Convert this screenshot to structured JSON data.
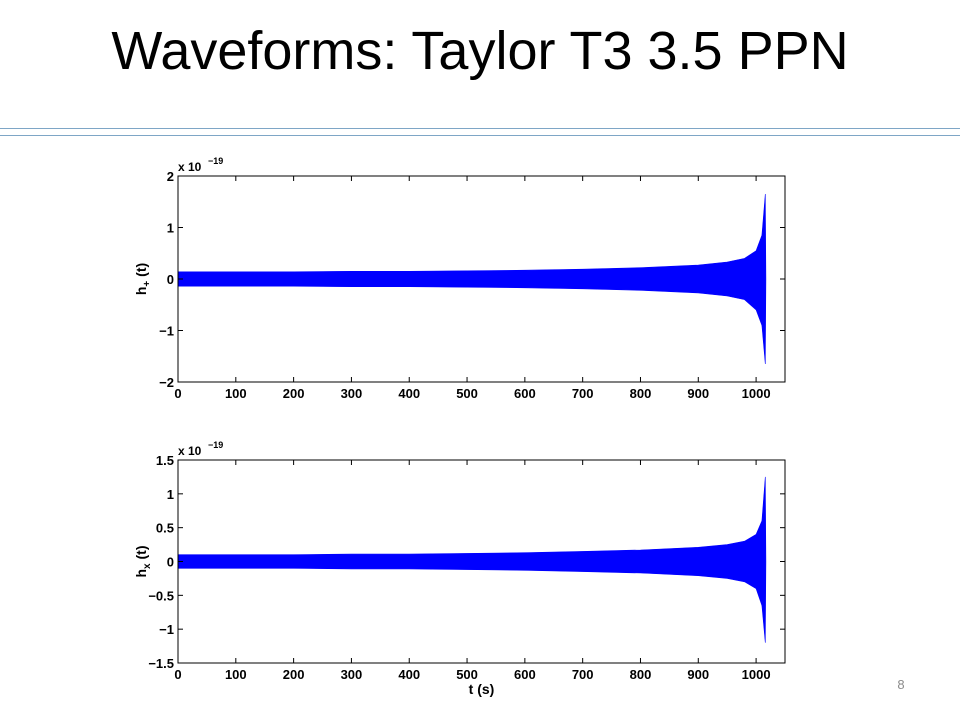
{
  "slide": {
    "title": "Waveforms: Taylor T3 3.5 PPN",
    "page_number": "8",
    "accent_color": "#7ea6c6"
  },
  "chart_data": [
    {
      "type": "line",
      "id": "hplus",
      "ylabel": "h+(t)",
      "ylabel_main": "h",
      "ylabel_sub": "+",
      "ylabel_rest": " (t)",
      "xlabel": "",
      "scale_label": "x 10",
      "scale_exponent": "−19",
      "xlim": [
        0,
        1050
      ],
      "ylim": [
        -2,
        2
      ],
      "xticks": [
        0,
        100,
        200,
        300,
        400,
        500,
        600,
        700,
        800,
        900,
        1000
      ],
      "xtick_labels": [
        "0",
        "100",
        "200",
        "300",
        "400",
        "500",
        "600",
        "700",
        "800",
        "900",
        "1000"
      ],
      "yticks": [
        -2,
        -1,
        0,
        1,
        2
      ],
      "ytick_labels": [
        "−2",
        "−1",
        "0",
        "1",
        "2"
      ],
      "color": "#0000ff",
      "envelope": {
        "t": [
          0,
          100,
          200,
          300,
          400,
          500,
          600,
          700,
          800,
          900,
          950,
          980,
          1000,
          1010,
          1016,
          1017
        ],
        "upper": [
          0.14,
          0.14,
          0.14,
          0.15,
          0.15,
          0.16,
          0.17,
          0.19,
          0.22,
          0.27,
          0.33,
          0.4,
          0.55,
          0.85,
          1.65,
          0
        ],
        "lower": [
          -0.14,
          -0.14,
          -0.14,
          -0.15,
          -0.15,
          -0.16,
          -0.17,
          -0.19,
          -0.22,
          -0.27,
          -0.33,
          -0.4,
          -0.6,
          -0.9,
          -1.65,
          0
        ]
      }
    },
    {
      "type": "line",
      "id": "hcross",
      "ylabel": "hx(t)",
      "ylabel_main": "h",
      "ylabel_sub": "x",
      "ylabel_rest": " (t)",
      "xlabel": "t (s)",
      "scale_label": "x 10",
      "scale_exponent": "−19",
      "xlim": [
        0,
        1050
      ],
      "ylim": [
        -1.5,
        1.5
      ],
      "xticks": [
        0,
        100,
        200,
        300,
        400,
        500,
        600,
        700,
        800,
        900,
        1000
      ],
      "xtick_labels": [
        "0",
        "100",
        "200",
        "300",
        "400",
        "500",
        "600",
        "700",
        "800",
        "900",
        "1000"
      ],
      "yticks": [
        -1.5,
        -1,
        -0.5,
        0,
        0.5,
        1,
        1.5
      ],
      "ytick_labels": [
        "−1.5",
        "−1",
        "−0.5",
        "0",
        "0.5",
        "1",
        "1.5"
      ],
      "color": "#0000ff",
      "envelope": {
        "t": [
          0,
          100,
          200,
          300,
          400,
          500,
          600,
          700,
          800,
          900,
          950,
          980,
          1000,
          1010,
          1016,
          1017
        ],
        "upper": [
          0.1,
          0.1,
          0.1,
          0.11,
          0.11,
          0.12,
          0.13,
          0.15,
          0.17,
          0.21,
          0.25,
          0.3,
          0.4,
          0.6,
          1.25,
          0
        ],
        "lower": [
          -0.1,
          -0.1,
          -0.1,
          -0.11,
          -0.11,
          -0.12,
          -0.13,
          -0.15,
          -0.17,
          -0.21,
          -0.25,
          -0.3,
          -0.4,
          -0.65,
          -1.2,
          0
        ]
      }
    }
  ]
}
